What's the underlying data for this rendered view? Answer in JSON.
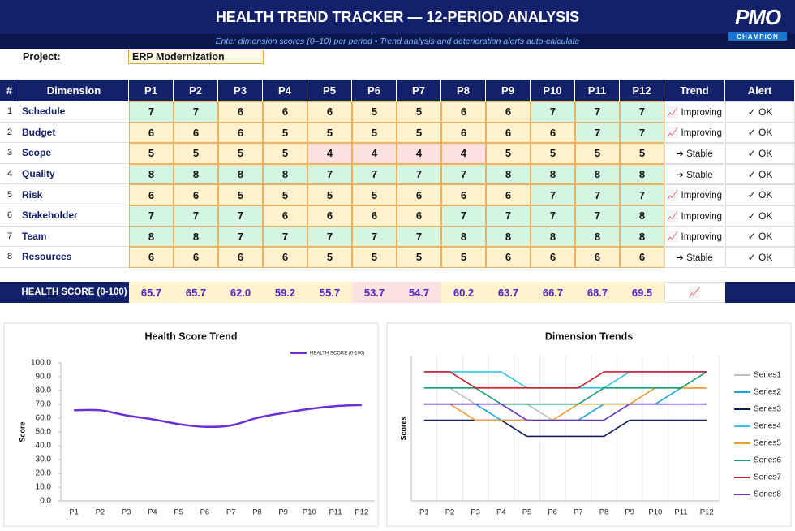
{
  "header": {
    "title": "HEALTH TREND TRACKER — 12-PERIOD ANALYSIS",
    "subtitle": "Enter dimension scores (0–10) per period  •  Trend analysis and deterioration alerts auto-calculate",
    "logo_top": "PMO",
    "logo_bottom": "CHAMPION"
  },
  "project": {
    "label": "Project:",
    "value": "ERP Modernization"
  },
  "table": {
    "columns": [
      "#",
      "Dimension",
      "P1",
      "P2",
      "P3",
      "P4",
      "P5",
      "P6",
      "P7",
      "P8",
      "P9",
      "P10",
      "P11",
      "P12",
      "Trend",
      "Alert"
    ],
    "rows": [
      {
        "num": 1,
        "dimension": "Schedule",
        "scores": [
          7,
          7,
          6,
          6,
          6,
          5,
          5,
          6,
          6,
          7,
          7,
          7
        ],
        "trend": "📈 Improving",
        "alert": "✓ OK"
      },
      {
        "num": 2,
        "dimension": "Budget",
        "scores": [
          6,
          6,
          6,
          5,
          5,
          5,
          5,
          6,
          6,
          6,
          7,
          7
        ],
        "trend": "📈 Improving",
        "alert": "✓ OK"
      },
      {
        "num": 3,
        "dimension": "Scope",
        "scores": [
          5,
          5,
          5,
          5,
          4,
          4,
          4,
          4,
          5,
          5,
          5,
          5
        ],
        "trend": "➔ Stable",
        "alert": "✓ OK"
      },
      {
        "num": 4,
        "dimension": "Quality",
        "scores": [
          8,
          8,
          8,
          8,
          7,
          7,
          7,
          7,
          8,
          8,
          8,
          8
        ],
        "trend": "➔ Stable",
        "alert": "✓ OK"
      },
      {
        "num": 5,
        "dimension": "Risk",
        "scores": [
          6,
          6,
          5,
          5,
          5,
          5,
          6,
          6,
          6,
          7,
          7,
          7
        ],
        "trend": "📈 Improving",
        "alert": "✓ OK"
      },
      {
        "num": 6,
        "dimension": "Stakeholder",
        "scores": [
          7,
          7,
          7,
          6,
          6,
          6,
          6,
          7,
          7,
          7,
          7,
          8
        ],
        "trend": "📈 Improving",
        "alert": "✓ OK"
      },
      {
        "num": 7,
        "dimension": "Team",
        "scores": [
          8,
          8,
          7,
          7,
          7,
          7,
          7,
          8,
          8,
          8,
          8,
          8
        ],
        "trend": "📈 Improving",
        "alert": "✓ OK"
      },
      {
        "num": 8,
        "dimension": "Resources",
        "scores": [
          6,
          6,
          6,
          6,
          5,
          5,
          5,
          5,
          6,
          6,
          6,
          6
        ],
        "trend": "➔ Stable",
        "alert": "✓ OK"
      }
    ]
  },
  "health": {
    "label": "HEALTH SCORE (0-100)",
    "values": [
      "65.7",
      "65.7",
      "62.0",
      "59.2",
      "55.7",
      "53.7",
      "54.7",
      "60.2",
      "63.7",
      "66.7",
      "68.7",
      "69.5"
    ],
    "trend": "📈"
  },
  "chart_data": [
    {
      "type": "line",
      "title": "Health Score Trend",
      "y_label": "Score",
      "smooth": true,
      "legend": "top-right",
      "categories": [
        "P1",
        "P2",
        "P3",
        "P4",
        "P5",
        "P6",
        "P7",
        "P8",
        "P9",
        "P10",
        "P11",
        "P12"
      ],
      "series": [
        {
          "name": "HEALTH SCORE (0-100)",
          "color": "#6a2fd6",
          "values": [
            65.7,
            65.7,
            62.0,
            59.2,
            55.7,
            53.7,
            54.7,
            60.2,
            63.7,
            66.7,
            68.7,
            69.5
          ]
        }
      ],
      "ylim": [
        0,
        100
      ],
      "yticks": [
        {
          "value": 0,
          "label": "0.0"
        },
        {
          "value": 10,
          "label": "10.0"
        },
        {
          "value": 20,
          "label": "20.0"
        },
        {
          "value": 30,
          "label": "30.0"
        },
        {
          "value": 40,
          "label": "40.0"
        },
        {
          "value": 50,
          "label": "50.0"
        },
        {
          "value": 60,
          "label": "60.0"
        },
        {
          "value": 70,
          "label": "70.0"
        },
        {
          "value": 80,
          "label": "80.0"
        },
        {
          "value": 90,
          "label": "90.0"
        },
        {
          "value": 100,
          "label": "100.0"
        }
      ],
      "grid": false
    },
    {
      "type": "line",
      "title": "Dimension Trends",
      "y_label": "Scores",
      "smooth": false,
      "legend": "right",
      "categories": [
        "P1",
        "P2",
        "P3",
        "P4",
        "P5",
        "P6",
        "P7",
        "P8",
        "P9",
        "P10",
        "P11",
        "P12"
      ],
      "series": [
        {
          "name": "Series1",
          "color": "#bfbfbf",
          "values": [
            7,
            7,
            6,
            6,
            6,
            5,
            5,
            6,
            6,
            7,
            7,
            7
          ]
        },
        {
          "name": "Series2",
          "color": "#1aa6dc",
          "values": [
            6,
            6,
            6,
            5,
            5,
            5,
            5,
            6,
            6,
            6,
            7,
            7
          ]
        },
        {
          "name": "Series3",
          "color": "#0b1f5c",
          "values": [
            5,
            5,
            5,
            5,
            4,
            4,
            4,
            4,
            5,
            5,
            5,
            5
          ]
        },
        {
          "name": "Series4",
          "color": "#33c3e8",
          "values": [
            8,
            8,
            8,
            8,
            7,
            7,
            7,
            7,
            8,
            8,
            8,
            8
          ]
        },
        {
          "name": "Series5",
          "color": "#f0a030",
          "values": [
            6,
            6,
            5,
            5,
            5,
            5,
            6,
            6,
            6,
            7,
            7,
            7
          ]
        },
        {
          "name": "Series6",
          "color": "#1e9e6e",
          "values": [
            7,
            7,
            7,
            6,
            6,
            6,
            6,
            7,
            7,
            7,
            7,
            8
          ]
        },
        {
          "name": "Series7",
          "color": "#d0202e",
          "values": [
            8,
            8,
            7,
            7,
            7,
            7,
            7,
            8,
            8,
            8,
            8,
            8
          ]
        },
        {
          "name": "Series8",
          "color": "#6a30d0",
          "values": [
            6,
            6,
            6,
            6,
            5,
            5,
            5,
            5,
            6,
            6,
            6,
            6
          ]
        }
      ],
      "ylim": [
        0,
        9
      ],
      "grid": true
    }
  ]
}
